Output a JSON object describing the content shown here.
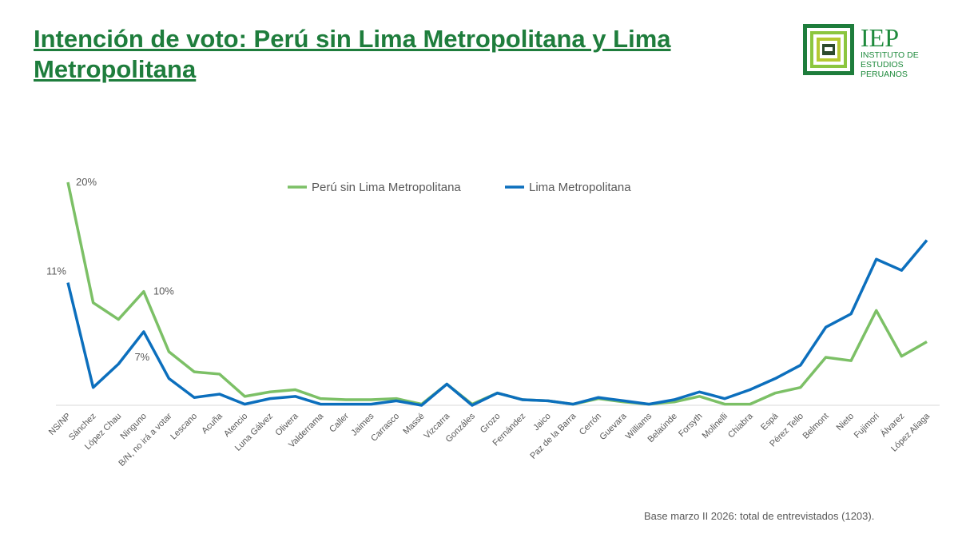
{
  "header": {
    "title": "Intención de voto: Perú sin Lima Metropolitana y Lima Metropolitana"
  },
  "logo": {
    "acronym": "IEP",
    "line1": "INSTITUTO DE",
    "line2": "ESTUDIOS",
    "line3": "PERUANOS"
  },
  "footer": {
    "note": "Base marzo II 2026: total de entrevistados (1203)."
  },
  "chart_data": {
    "type": "line",
    "title": "Intención de voto: Perú sin Lima Metropolitana y Lima Metropolitana",
    "xlabel": "",
    "ylabel": "",
    "ylim": [
      0,
      20
    ],
    "grid": false,
    "legend": "top-center",
    "categories": [
      "NS/NP",
      "Sánchez",
      "López Chau",
      "Ninguno",
      "B/N, no irá a votar",
      "Lescano",
      "Acuña",
      "Atencio",
      "Luna Gálvez",
      "Olivera",
      "Valderrama",
      "Caller",
      "Jaimes",
      "Carrasco",
      "Massé",
      "Vizcarra",
      "Gonzáles",
      "Grozo",
      "Fernández",
      "Jaico",
      "Paz de la Barra",
      "Cerrón",
      "Guevara",
      "Williams",
      "Belaúnde",
      "Forsyth",
      "Molinelli",
      "Chiabra",
      "Espá",
      "Pérez Tello",
      "Belmont",
      "Nieto",
      "Fujimori",
      "Álvarez",
      "López Aliaga"
    ],
    "series": [
      {
        "name": "Perú sin Lima Metropolitana",
        "color": "#7cc066",
        "values": [
          20,
          9.2,
          7.7,
          10.2,
          4.8,
          3.0,
          2.8,
          0.8,
          1.2,
          1.4,
          0.6,
          0.5,
          0.5,
          0.6,
          0.1,
          1.9,
          0.1,
          1.1,
          0.5,
          0.4,
          0.1,
          0.6,
          0.3,
          0.1,
          0.3,
          0.8,
          0.1,
          0.1,
          1.1,
          1.6,
          4.3,
          4.0,
          8.5,
          4.4,
          5.7
        ]
      },
      {
        "name": "Lima Metropolitana",
        "color": "#0c6fbd",
        "values": [
          11,
          1.6,
          3.7,
          6.6,
          2.4,
          0.7,
          1.0,
          0.1,
          0.6,
          0.8,
          0.1,
          0.1,
          0.1,
          0.4,
          0,
          1.9,
          0,
          1.1,
          0.5,
          0.4,
          0.1,
          0.7,
          0.4,
          0.1,
          0.5,
          1.2,
          0.6,
          1.4,
          2.4,
          3.6,
          7.0,
          8.2,
          13.1,
          12.1,
          14.8
        ]
      }
    ],
    "annotations": [
      {
        "series": 0,
        "index": 0,
        "text": "20%"
      },
      {
        "series": 1,
        "index": 0,
        "text": "11%"
      },
      {
        "series": 0,
        "index": 3,
        "text": "10%"
      },
      {
        "series": 1,
        "index": 3,
        "text": "7%"
      }
    ]
  }
}
